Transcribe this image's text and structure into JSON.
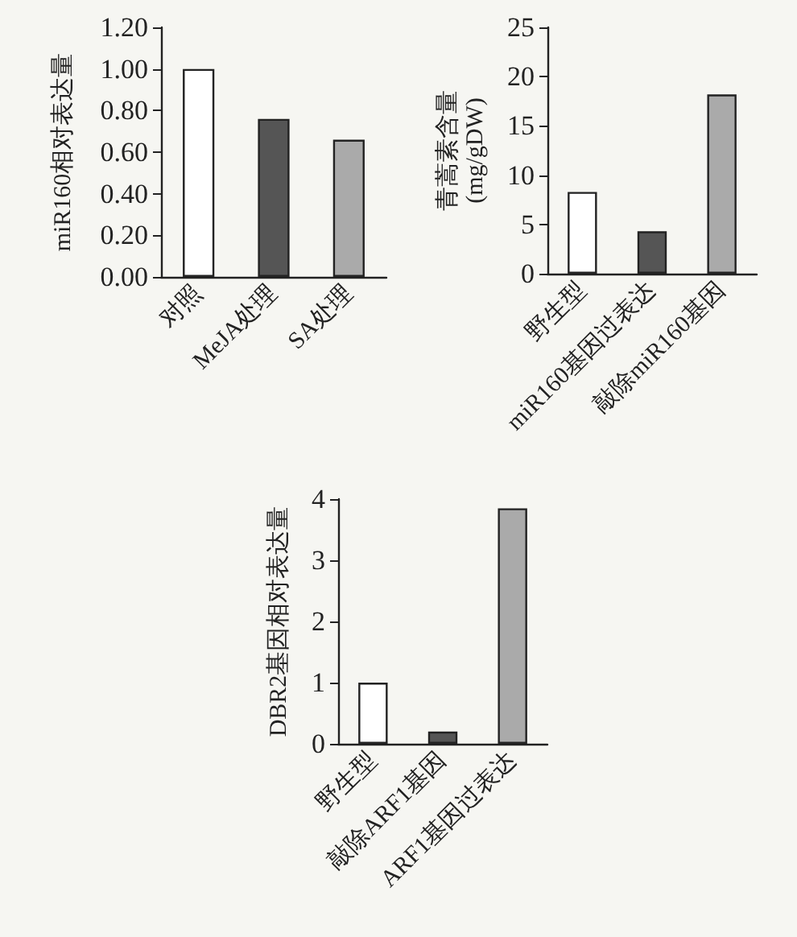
{
  "chart_data": [
    {
      "type": "bar",
      "ylabel": "miR160相对表达量",
      "categories": [
        "对照",
        "MeJA处理",
        "SA处理"
      ],
      "values": [
        1.0,
        0.76,
        0.66
      ],
      "colors": [
        "#ffffff",
        "#555555",
        "#aaaaaa"
      ],
      "ylim": [
        0,
        1.2
      ],
      "yticks": [
        {
          "value": 0,
          "label": "0.00"
        },
        {
          "value": 0.2,
          "label": "0.20"
        },
        {
          "value": 0.4,
          "label": "0.40"
        },
        {
          "value": 0.6,
          "label": "0.60"
        },
        {
          "value": 0.8,
          "label": "0.80"
        },
        {
          "value": 1.0,
          "label": "1.00"
        },
        {
          "value": 1.2,
          "label": "1.20"
        }
      ]
    },
    {
      "type": "bar",
      "ylabel": "青蒿素含量\n(mg/gDW)",
      "categories": [
        "野生型",
        "miR160基因过表达",
        "敲除miR160基因"
      ],
      "values": [
        8.3,
        4.3,
        18.2
      ],
      "colors": [
        "#ffffff",
        "#555555",
        "#aaaaaa"
      ],
      "ylim": [
        0,
        25
      ],
      "yticks": [
        0,
        5,
        10,
        15,
        20,
        25
      ]
    },
    {
      "type": "bar",
      "ylabel": "DBR2基因相对表达量",
      "categories": [
        "野生型",
        "敲除ARF1基因",
        "ARF1基因过表达"
      ],
      "values": [
        1.0,
        0.2,
        3.85
      ],
      "colors": [
        "#ffffff",
        "#555555",
        "#aaaaaa"
      ],
      "ylim": [
        0,
        4
      ],
      "yticks": [
        0,
        1,
        2,
        3,
        4
      ]
    }
  ]
}
